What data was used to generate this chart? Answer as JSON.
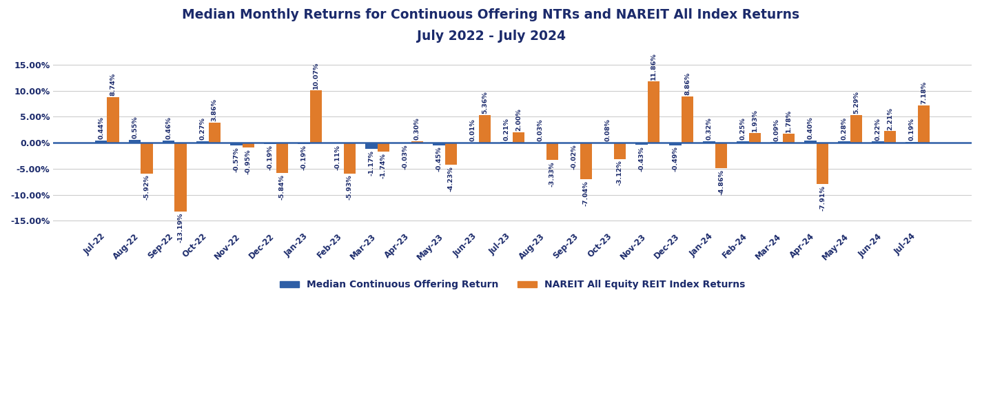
{
  "title_line1": "Median Monthly Returns for Continuous Offering NTRs and NAREIT All Index Returns",
  "title_line2": "July 2022 - July 2024",
  "categories": [
    "Jul-22",
    "Aug-22",
    "Sep-22",
    "Oct-22",
    "Nov-22",
    "Dec-22",
    "Jan-23",
    "Feb-23",
    "Mar-23",
    "Apr-23",
    "May-23",
    "Jun-23",
    "Jul-23",
    "Aug-23",
    "Sep-23",
    "Oct-23",
    "Nov-23",
    "Dec-23",
    "Jan-24",
    "Feb-24",
    "Mar-24",
    "Apr-24",
    "May-24",
    "Jun-24",
    "Jul-24"
  ],
  "blue_values": [
    0.44,
    0.55,
    0.46,
    0.27,
    -0.57,
    -0.19,
    -0.19,
    -0.11,
    -1.17,
    -0.03,
    -0.45,
    0.01,
    0.21,
    0.03,
    -0.02,
    0.08,
    -0.43,
    -0.49,
    0.32,
    0.25,
    0.09,
    0.4,
    0.28,
    0.22,
    0.19
  ],
  "orange_values": [
    8.74,
    -5.92,
    -13.19,
    3.86,
    -0.95,
    -5.84,
    10.07,
    -5.93,
    -1.74,
    0.3,
    -4.23,
    5.36,
    2.0,
    -3.33,
    -7.04,
    -3.12,
    11.86,
    8.86,
    -4.86,
    1.93,
    1.78,
    -7.91,
    5.29,
    2.21,
    7.18
  ],
  "blue_labels": [
    "0.44%",
    "0.55%",
    "0.46%",
    "0.27%",
    "-0.57%",
    "-0.19%",
    "-0.19%",
    "-0.11%",
    "-1.17%",
    "-0.03%",
    "-0.45%",
    "0.01%",
    "0.21%",
    "0.03%",
    "-0.02%",
    "0.08%",
    "-0.43%",
    "-0.49%",
    "0.32%",
    "0.25%",
    "0.09%",
    "0.40%",
    "0.28%",
    "0.22%",
    "0.19%"
  ],
  "orange_labels": [
    "8.74%",
    "-5.92%",
    "-13.19%",
    "3.86%",
    "-0.95%",
    "-5.84%",
    "10.07%",
    "-5.93%",
    "-1.74%",
    "0.30%",
    "-4.23%",
    "5.36%",
    "2.00%",
    "-3.33%",
    "-7.04%",
    "-3.12%",
    "11.86%",
    "8.86%",
    "-4.86%",
    "1.93%",
    "1.78%",
    "-7.91%",
    "5.29%",
    "2.21%",
    "7.18%"
  ],
  "blue_color": "#2E5EA6",
  "orange_color": "#E07B2A",
  "title_color": "#1B2A6B",
  "axis_label_color": "#1B2A6B",
  "tick_color": "#555555",
  "background_color": "#FFFFFF",
  "grid_color": "#CCCCCC",
  "ylim": [
    -16.5,
    15.5
  ],
  "yticks": [
    -15,
    -10,
    -5,
    0,
    5,
    10,
    15
  ],
  "legend_blue": "Median Continuous Offering Return",
  "legend_orange": "NAREIT All Equity REIT Index Returns",
  "bar_width": 0.36,
  "label_fontsize": 6.8,
  "title_fontsize": 13.5,
  "axis_tick_fontsize": 9.0,
  "xtick_fontsize": 8.5
}
